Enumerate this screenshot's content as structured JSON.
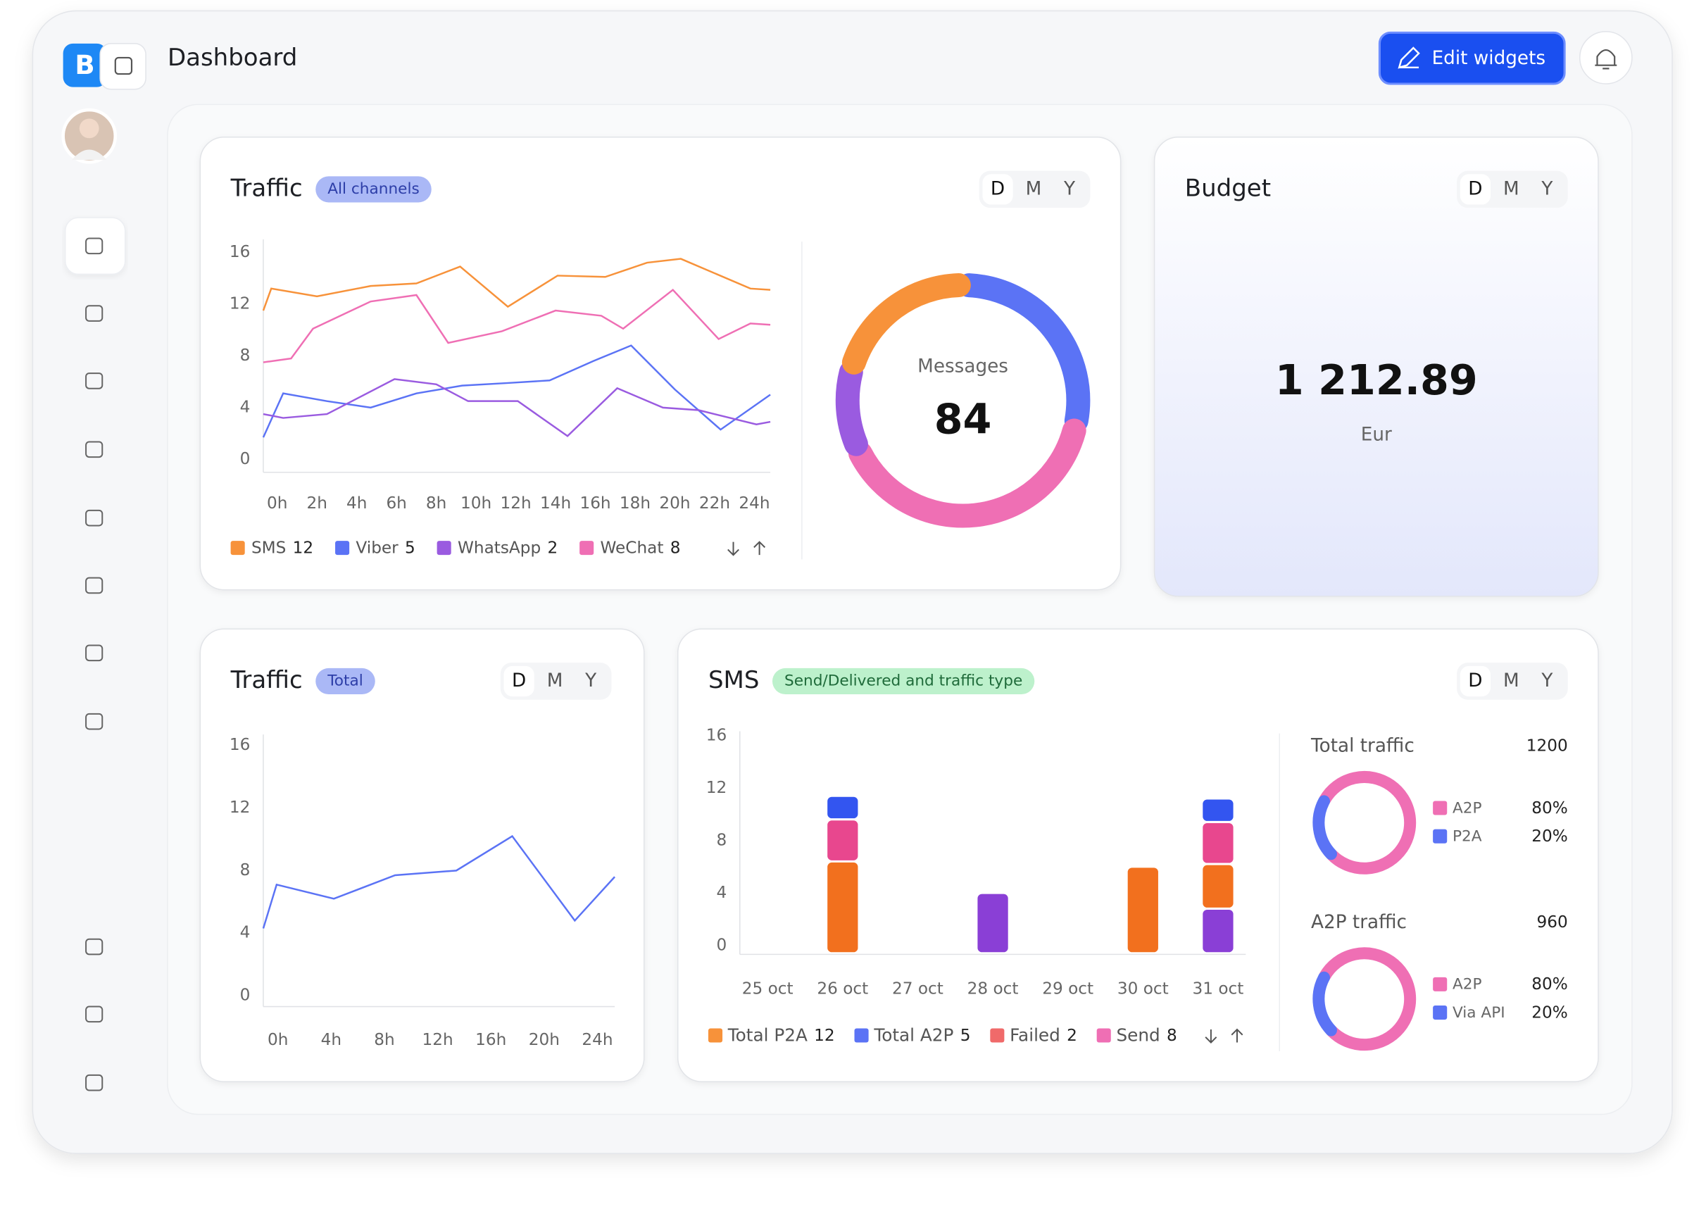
{
  "header": {
    "title": "Dashboard",
    "button": "Edit widgets"
  },
  "budget": {
    "title": "Budget",
    "periods": [
      "D",
      "M",
      "Y"
    ],
    "amount": "1 212.89",
    "currency": "Eur"
  },
  "chart_data": [
    {
      "type": "line",
      "title": "Traffic",
      "badge": "All channels",
      "periods": [
        "D",
        "M",
        "Y"
      ],
      "xlim": [
        -0.7,
        24.8
      ],
      "xticks": [
        {
          "value": 0,
          "label": "0h"
        },
        {
          "value": 2,
          "label": "2h"
        },
        {
          "value": 4,
          "label": "4h"
        },
        {
          "value": 6,
          "label": "6h"
        },
        {
          "value": 8,
          "label": "8h"
        },
        {
          "value": 10,
          "label": "10h"
        },
        {
          "value": 12,
          "label": "12h"
        },
        {
          "value": 14,
          "label": "14h"
        },
        {
          "value": 16,
          "label": "16h"
        },
        {
          "value": 18,
          "label": "18h"
        },
        {
          "value": 20,
          "label": "20h"
        },
        {
          "value": 22,
          "label": "22h"
        },
        {
          "value": 24,
          "label": "24h"
        }
      ],
      "ylim": [
        -1,
        17
      ],
      "yticks": [
        0,
        4,
        8,
        12,
        16
      ],
      "series": [
        {
          "name": "SMS",
          "color": "#f7923a",
          "x": [
            -0.7,
            -0.3,
            2,
            4.7,
            7,
            9.2,
            11.6,
            14.1,
            16.5,
            18.6,
            20.3,
            23.8,
            24.8
          ],
          "values": [
            11.5,
            13.2,
            12.6,
            13.4,
            13.6,
            14.9,
            11.8,
            14.2,
            14.1,
            15.2,
            15.5,
            13.2,
            13.1
          ]
        },
        {
          "name": "Viber",
          "color": "#5b73f5",
          "x": [
            -0.7,
            0.3,
            2.5,
            4.7,
            7,
            9.3,
            11.6,
            13.7,
            15.9,
            17.8,
            20,
            22.3,
            24.8
          ],
          "values": [
            1.7,
            5.1,
            4.5,
            4.0,
            5.1,
            5.7,
            5.9,
            6.1,
            7.6,
            8.8,
            5.4,
            2.3,
            5.0
          ]
        },
        {
          "name": "WhatsApp",
          "color": "#9a5be0",
          "x": [
            -0.7,
            0.3,
            2.5,
            5.9,
            8,
            9.6,
            12.1,
            14.6,
            17.1,
            19.4,
            21.2,
            24.1,
            24.8
          ],
          "values": [
            3.5,
            3.2,
            3.5,
            6.2,
            5.8,
            4.5,
            4.5,
            1.8,
            5.5,
            4.0,
            3.8,
            2.7,
            2.9
          ]
        },
        {
          "name": "WeChat",
          "color": "#ef6fb4",
          "x": [
            -0.7,
            0.7,
            1.8,
            4.7,
            7,
            8.6,
            11.3,
            14,
            16.3,
            17.4,
            19.9,
            22.2,
            23.8,
            24.8
          ],
          "values": [
            7.5,
            7.8,
            10.1,
            12.2,
            12.7,
            9.0,
            9.9,
            11.5,
            11.1,
            10.1,
            13.1,
            9.3,
            10.5,
            10.4
          ]
        }
      ],
      "legend_values": [
        12,
        5,
        2,
        8
      ]
    },
    {
      "type": "donut",
      "label": "Messages",
      "total": 84,
      "values": [
        24,
        34,
        9,
        17
      ],
      "colors": [
        "#5b73f5",
        "#ef6fb4",
        "#9a5be0",
        "#f7923a"
      ]
    },
    {
      "type": "line",
      "title": "Traffic",
      "badge": "Total",
      "periods": [
        "D",
        "M",
        "Y"
      ],
      "xlim": [
        -1.1,
        25.3
      ],
      "xticks": [
        {
          "value": 0,
          "label": "0h"
        },
        {
          "value": 4,
          "label": "4h"
        },
        {
          "value": 8,
          "label": "8h"
        },
        {
          "value": 12,
          "label": "12h"
        },
        {
          "value": 16,
          "label": "16h"
        },
        {
          "value": 20,
          "label": "20h"
        },
        {
          "value": 24,
          "label": "24h"
        }
      ],
      "ylim": [
        -0.7,
        16.7
      ],
      "yticks": [
        0,
        4,
        8,
        12,
        16
      ],
      "series": [
        {
          "color": "#5b73f5",
          "x": [
            -1.1,
            -0.1,
            4.2,
            8.8,
            13.4,
            17.6,
            22.3,
            25.3
          ],
          "values": [
            4.3,
            7.1,
            6.2,
            7.7,
            8.0,
            10.2,
            4.8,
            7.6
          ]
        }
      ]
    },
    {
      "type": "bar",
      "title": "SMS",
      "badge": "Send/Delivered and traffic type",
      "periods": [
        "D",
        "M",
        "Y"
      ],
      "categories": [
        "25 oct",
        "26 oct",
        "27 oct",
        "28 oct",
        "29 oct",
        "30 oct",
        "31 oct"
      ],
      "ylim": [
        0,
        17
      ],
      "yticks": [
        0,
        4,
        8,
        12,
        16
      ],
      "series": [
        {
          "color": "#8a3fd6",
          "values": [
            null,
            null,
            null,
            4.6,
            null,
            null,
            3.4
          ]
        },
        {
          "color": "#f2701e",
          "values": [
            null,
            7,
            null,
            null,
            null,
            6.6,
            3.4
          ]
        },
        {
          "color": "#e8478e",
          "values": [
            null,
            3.2,
            null,
            null,
            null,
            null,
            3.2
          ]
        },
        {
          "color": "#3355f0",
          "values": [
            null,
            1.8,
            null,
            null,
            null,
            null,
            1.8
          ]
        }
      ],
      "legend": [
        {
          "name": "Total P2A",
          "value": 12,
          "color": "#f7923a"
        },
        {
          "name": "Total A2P",
          "value": 5,
          "color": "#5b73f5"
        },
        {
          "name": "Failed",
          "value": 2,
          "color": "#f06a6a"
        },
        {
          "name": "Send",
          "value": 8,
          "color": "#ef6fb4"
        }
      ]
    },
    {
      "type": "donut",
      "title": "Total traffic",
      "total": 1200,
      "categories": [
        "A2P",
        "P2A"
      ],
      "values": [
        80,
        20
      ],
      "value_labels": [
        "80%",
        "20%"
      ],
      "colors": [
        "#ef6fb4",
        "#5b73f5"
      ]
    },
    {
      "type": "donut",
      "title": "A2P traffic",
      "total": 960,
      "categories": [
        "A2P",
        "Via API"
      ],
      "values": [
        80,
        20
      ],
      "value_labels": [
        "80%",
        "20%"
      ],
      "colors": [
        "#ef6fb4",
        "#5b73f5"
      ]
    }
  ]
}
